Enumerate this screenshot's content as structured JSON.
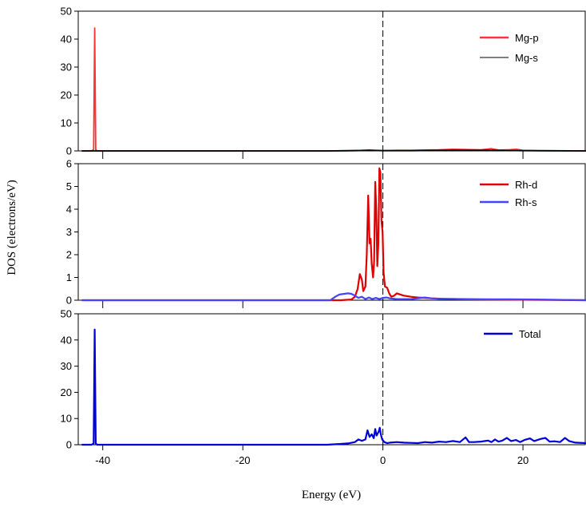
{
  "chart_data": {
    "type": "line",
    "xlabel": "Energy (eV)",
    "ylabel": "DOS (electrons/eV)",
    "xlim": [
      -43.5,
      29
    ],
    "xticks": [
      -40,
      -20,
      0,
      20
    ],
    "fermi_level": 0,
    "panels": [
      {
        "id": "top",
        "ylim": [
          0,
          50
        ],
        "yticks": [
          0,
          10,
          20,
          30,
          40,
          50
        ],
        "series": [
          {
            "name": "Mg-p",
            "color": "#ff3333",
            "points": [
              [
                -43,
                0
              ],
              [
                -41.6,
                0
              ],
              [
                -41.3,
                0.5
              ],
              [
                -41.15,
                44
              ],
              [
                -41.0,
                0.5
              ],
              [
                -40.8,
                0
              ],
              [
                -8,
                0
              ],
              [
                -5,
                0.1
              ],
              [
                -3,
                0.2
              ],
              [
                -2,
                0.3
              ],
              [
                -1,
                0.2
              ],
              [
                0,
                0.1
              ],
              [
                2,
                0.2
              ],
              [
                4,
                0.2
              ],
              [
                6,
                0.3
              ],
              [
                8,
                0.4
              ],
              [
                10,
                0.6
              ],
              [
                12,
                0.5
              ],
              [
                14,
                0.4
              ],
              [
                15.5,
                0.8
              ],
              [
                16.5,
                0.3
              ],
              [
                18,
                0.4
              ],
              [
                19,
                0.6
              ],
              [
                20,
                0.2
              ],
              [
                22,
                0.1
              ],
              [
                25,
                0.05
              ],
              [
                29,
                0
              ]
            ]
          },
          {
            "name": "Mg-s",
            "color": "#000000",
            "points": [
              [
                -43,
                0
              ],
              [
                -8,
                0
              ],
              [
                -4,
                0.1
              ],
              [
                -2,
                0.2
              ],
              [
                0,
                0.1
              ],
              [
                4,
                0.1
              ],
              [
                8,
                0.2
              ],
              [
                12,
                0.2
              ],
              [
                16,
                0.2
              ],
              [
                20,
                0.1
              ],
              [
                29,
                0
              ]
            ]
          }
        ]
      },
      {
        "id": "middle",
        "ylim": [
          0,
          6
        ],
        "yticks": [
          0,
          1,
          2,
          3,
          4,
          5,
          6
        ],
        "series": [
          {
            "name": "Rh-d",
            "color": "#dd0000",
            "points": [
              [
                -43,
                0
              ],
              [
                -6,
                0
              ],
              [
                -4.5,
                0.03
              ],
              [
                -4,
                0.15
              ],
              [
                -3.6,
                0.5
              ],
              [
                -3.3,
                1.15
              ],
              [
                -3.0,
                0.9
              ],
              [
                -2.8,
                0.4
              ],
              [
                -2.5,
                0.6
              ],
              [
                -2.3,
                2.0
              ],
              [
                -2.1,
                4.6
              ],
              [
                -1.9,
                2.5
              ],
              [
                -1.75,
                2.7
              ],
              [
                -1.6,
                1.6
              ],
              [
                -1.4,
                1.0
              ],
              [
                -1.25,
                1.7
              ],
              [
                -1.1,
                5.2
              ],
              [
                -0.95,
                4.0
              ],
              [
                -0.8,
                1.5
              ],
              [
                -0.65,
                2.5
              ],
              [
                -0.5,
                5.8
              ],
              [
                -0.35,
                5.6
              ],
              [
                -0.2,
                3.5
              ],
              [
                -0.05,
                3.0
              ],
              [
                0.1,
                1.2
              ],
              [
                0.3,
                0.6
              ],
              [
                0.6,
                0.55
              ],
              [
                0.9,
                0.3
              ],
              [
                1.2,
                0.15
              ],
              [
                1.6,
                0.2
              ],
              [
                2.0,
                0.3
              ],
              [
                2.5,
                0.25
              ],
              [
                3,
                0.2
              ],
              [
                4,
                0.15
              ],
              [
                5,
                0.12
              ],
              [
                6,
                0.1
              ],
              [
                7,
                0.08
              ],
              [
                9,
                0.06
              ],
              [
                12,
                0.04
              ],
              [
                16,
                0.03
              ],
              [
                20,
                0.02
              ],
              [
                29,
                0
              ]
            ]
          },
          {
            "name": "Rh-s",
            "color": "#4444ff",
            "points": [
              [
                -43,
                0
              ],
              [
                -7.5,
                0
              ],
              [
                -6.8,
                0.15
              ],
              [
                -6.2,
                0.25
              ],
              [
                -5.5,
                0.28
              ],
              [
                -5,
                0.3
              ],
              [
                -4.5,
                0.28
              ],
              [
                -4,
                0.2
              ],
              [
                -3.5,
                0.1
              ],
              [
                -3,
                0.15
              ],
              [
                -2.5,
                0.05
              ],
              [
                -2,
                0.12
              ],
              [
                -1.5,
                0.05
              ],
              [
                -1,
                0.1
              ],
              [
                -0.5,
                0.05
              ],
              [
                0,
                0.1
              ],
              [
                0.5,
                0.12
              ],
              [
                1,
                0.08
              ],
              [
                2,
                0.05
              ],
              [
                4,
                0.05
              ],
              [
                6,
                0.12
              ],
              [
                7,
                0.08
              ],
              [
                8,
                0.06
              ],
              [
                10,
                0.06
              ],
              [
                12,
                0.05
              ],
              [
                14,
                0.04
              ],
              [
                18,
                0.04
              ],
              [
                22,
                0.03
              ],
              [
                29,
                0
              ]
            ]
          }
        ]
      },
      {
        "id": "bottom",
        "ylim": [
          0,
          50
        ],
        "yticks": [
          0,
          10,
          20,
          30,
          40,
          50
        ],
        "series": [
          {
            "name": "Total",
            "color": "#0000dd",
            "points": [
              [
                -43,
                0
              ],
              [
                -41.6,
                0
              ],
              [
                -41.3,
                0.5
              ],
              [
                -41.15,
                44
              ],
              [
                -41.0,
                0.5
              ],
              [
                -40.8,
                0
              ],
              [
                -8,
                0
              ],
              [
                -6,
                0.3
              ],
              [
                -5,
                0.5
              ],
              [
                -4,
                1
              ],
              [
                -3.5,
                2
              ],
              [
                -3,
                1.5
              ],
              [
                -2.5,
                2
              ],
              [
                -2.2,
                5.5
              ],
              [
                -1.9,
                3
              ],
              [
                -1.6,
                4
              ],
              [
                -1.3,
                2.5
              ],
              [
                -1.1,
                6
              ],
              [
                -0.9,
                3.5
              ],
              [
                -0.6,
                5
              ],
              [
                -0.45,
                6.5
              ],
              [
                -0.3,
                4
              ],
              [
                -0.1,
                2
              ],
              [
                0.2,
                1
              ],
              [
                0.6,
                0.6
              ],
              [
                1,
                0.8
              ],
              [
                2,
                1.0
              ],
              [
                3,
                0.8
              ],
              [
                4,
                0.7
              ],
              [
                5,
                0.6
              ],
              [
                6,
                1.0
              ],
              [
                7,
                0.8
              ],
              [
                8,
                1.2
              ],
              [
                9,
                1.0
              ],
              [
                10,
                1.4
              ],
              [
                11,
                1.0
              ],
              [
                11.8,
                2.8
              ],
              [
                12.3,
                1.0
              ],
              [
                13,
                1.0
              ],
              [
                14,
                1.2
              ],
              [
                15,
                1.6
              ],
              [
                15.5,
                1.0
              ],
              [
                16,
                2.0
              ],
              [
                16.5,
                1.2
              ],
              [
                17,
                1.5
              ],
              [
                17.7,
                2.6
              ],
              [
                18.3,
                1.4
              ],
              [
                19,
                1.8
              ],
              [
                19.6,
                1.0
              ],
              [
                20.2,
                1.8
              ],
              [
                21,
                2.4
              ],
              [
                21.6,
                1.4
              ],
              [
                22.5,
                2.2
              ],
              [
                23.2,
                2.6
              ],
              [
                23.8,
                1.2
              ],
              [
                24.5,
                1.3
              ],
              [
                25.3,
                1.0
              ],
              [
                26,
                2.6
              ],
              [
                26.6,
                1.4
              ],
              [
                27.5,
                0.8
              ],
              [
                29,
                0.6
              ]
            ]
          }
        ]
      }
    ]
  }
}
